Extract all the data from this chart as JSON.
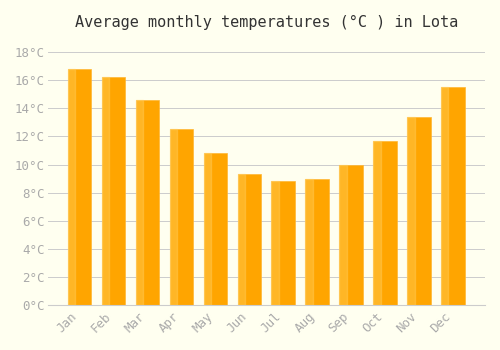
{
  "title": "Average monthly temperatures (°C ) in Lota",
  "months": [
    "Jan",
    "Feb",
    "Mar",
    "Apr",
    "May",
    "Jun",
    "Jul",
    "Aug",
    "Sep",
    "Oct",
    "Nov",
    "Dec"
  ],
  "values": [
    16.8,
    16.2,
    14.6,
    12.5,
    10.8,
    9.3,
    8.8,
    9.0,
    10.0,
    11.7,
    13.4,
    15.5
  ],
  "bar_color": "#FFA500",
  "bar_edge_color": "#FFB733",
  "background_color": "#FFFFF0",
  "grid_color": "#CCCCCC",
  "ylim": [
    0,
    19
  ],
  "yticks": [
    0,
    2,
    4,
    6,
    8,
    10,
    12,
    14,
    16,
    18
  ],
  "title_fontsize": 11,
  "tick_fontsize": 9,
  "tick_color": "#AAAAAA",
  "font_family": "monospace"
}
